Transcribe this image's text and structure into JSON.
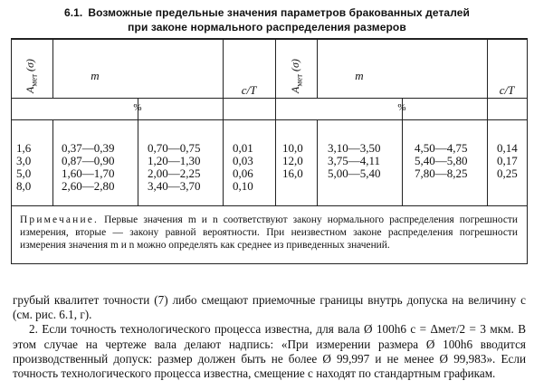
{
  "caption": {
    "number": "6.1.",
    "line1": "Возможные предельные значения параметров бракованных деталей",
    "line2": "при законе нормального распределения размеров"
  },
  "table": {
    "header": {
      "a_met": "A",
      "a_met_sub": "мет",
      "a_met_tail": "(σ)",
      "m": "m",
      "cT": "c/T",
      "percent": "%"
    },
    "left": {
      "a": [
        "1,6",
        "3,0",
        "5,0",
        "8,0"
      ],
      "m1": [
        "0,37—0,39",
        "0,87—0,90",
        "1,60—1,70",
        "2,60—2,80"
      ],
      "m2": [
        "0,70—0,75",
        "1,20—1,30",
        "2,00—2,25",
        "3,40—3,70"
      ],
      "cT": [
        "0,01",
        "0,03",
        "0,06",
        "0,10"
      ]
    },
    "right": {
      "a": [
        "10,0",
        "12,0",
        "16,0"
      ],
      "m1": [
        "3,10—3,50",
        "3,75—4,11",
        "5,00—5,40"
      ],
      "m2": [
        "4,50—4,75",
        "5,40—5,80",
        "7,80—8,25"
      ],
      "cT": [
        "0,14",
        "0,17",
        "0,25"
      ]
    },
    "note": {
      "label": "Примечание.",
      "text": "Первые значения m и n соответствуют закону нормального распределения погрешности измерения, вторые — закону равной вероятности. При неизвестном законе распределения погрешности измерения значения m и n можно определять как среднее из приведенных значений."
    }
  },
  "body": {
    "p1": "грубый квалитет точности (7) либо смещают приемочные границы внутрь допуска на величину с (см. рис. 6.1, г).",
    "p2": "2. Если точность технологического процесса известна, для вала Ø 100h6 с = Δмет/2 = 3 мкм. В этом случае на чертеже вала делают надпись: «При измерении размера Ø 100h6 вводится производственный допуск: размер должен быть не более Ø 99,997 и не менее Ø 99,983». Если точность технологического процесса известна, смещение с находят по стандартным графикам."
  }
}
